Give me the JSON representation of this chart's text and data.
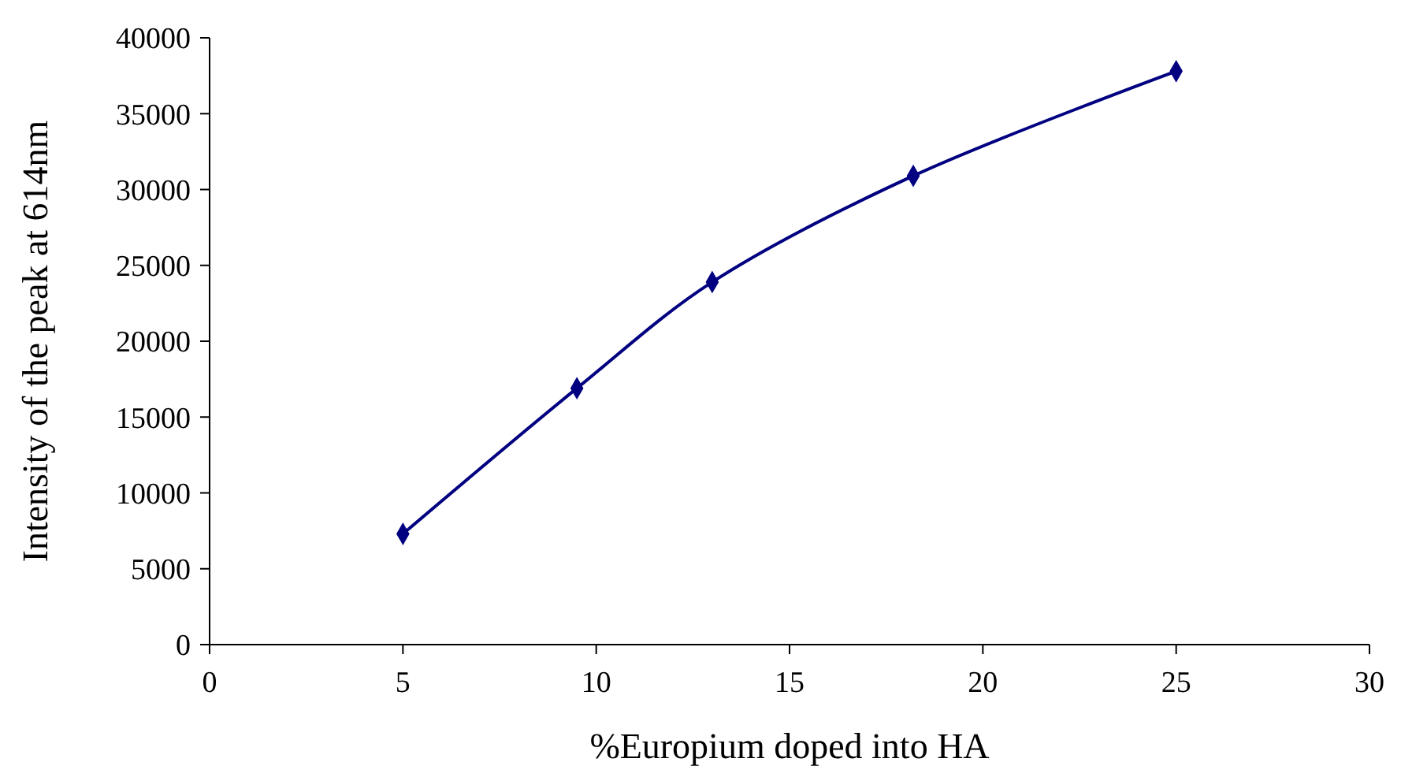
{
  "chart_data": {
    "type": "line",
    "xlabel": "%Europium doped into HA",
    "ylabel": "Intensity of the peak at 614nm",
    "x": [
      5,
      9.5,
      13,
      18.2,
      25
    ],
    "series": [
      {
        "color": "#000080",
        "values": [
          7300,
          16900,
          23900,
          30900,
          37800
        ]
      }
    ],
    "xlim": [
      0,
      30
    ],
    "xticks": [
      0,
      5,
      10,
      15,
      20,
      25,
      30
    ],
    "ylim": [
      0,
      40000
    ],
    "yticks": [
      0,
      5000,
      10000,
      15000,
      20000,
      25000,
      30000,
      35000,
      40000
    ],
    "grid": false,
    "marker": "diamond",
    "line_style": "solid"
  }
}
